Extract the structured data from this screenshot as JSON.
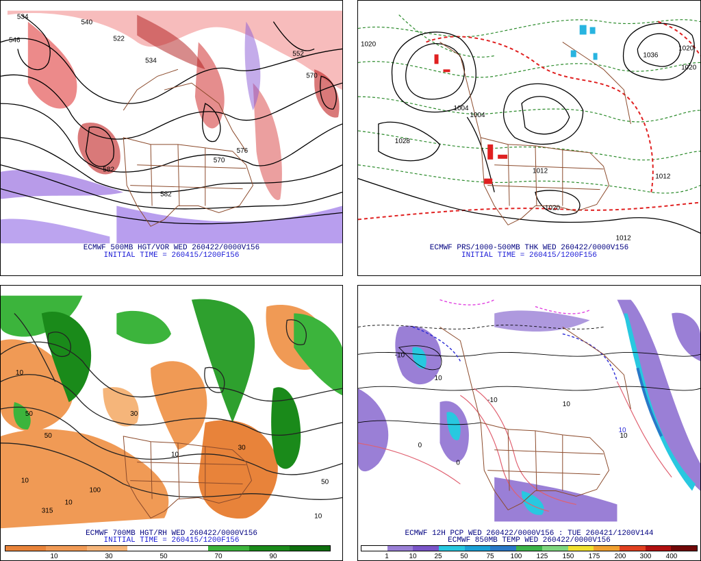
{
  "panels": {
    "top_left": {
      "line1": "ECMWF 500MB HGT/VOR WED 260422/0000V156",
      "line2": "INITIAL TIME = 260415/1200F156",
      "labels": [
        "534",
        "546",
        "540",
        "522",
        "534",
        "552",
        "570",
        "582",
        "576",
        "570",
        "582"
      ]
    },
    "top_right": {
      "line1": "ECMWF PRS/1000-500MB THK WED 260422/0000V156",
      "line2": "INITIAL TIME = 260415/1200F156",
      "labels": [
        "1020",
        "1028",
        "1004",
        "1004",
        "1012",
        "1036",
        "1020",
        "1020",
        "1020",
        "1012",
        "1012"
      ]
    },
    "bottom_left": {
      "line1": "ECMWF 700MB HGT/RH WED 260422/0000V156",
      "line2": "INITIAL TIME = 260415/1200F156",
      "labels": [
        "10",
        "50",
        "50",
        "10",
        "10",
        "30",
        "100",
        "315",
        "30",
        "50",
        "10",
        "10"
      ],
      "colorbar": {
        "colors": [
          "#e8833a",
          "#f09a55",
          "#f5b57a",
          "#ffffff",
          "#ffffff",
          "#3cb43c",
          "#1a8a1a",
          "#0e6e0e"
        ],
        "ticks": [
          "10",
          "30",
          "50",
          "70",
          "90"
        ]
      }
    },
    "bottom_right": {
      "line1": "ECMWF 12H PCP WED 260422/0000V156 : TUE 260421/1200V144",
      "line2": "ECMWF 850MB TEMP WED 260422/0000V156",
      "labels": [
        "-10",
        "0",
        "10",
        "10",
        "10",
        "10",
        "-10",
        "0"
      ],
      "colorbar": {
        "colors": [
          "#ffffff",
          "#9a7fd6",
          "#7a55c8",
          "#28c8e0",
          "#1aa0d6",
          "#2a78c8",
          "#3cb44a",
          "#7ed67e",
          "#f0e030",
          "#f0a030",
          "#e04020",
          "#b01010",
          "#700808"
        ],
        "ticks": [
          "1",
          "10",
          "25",
          "50",
          "75",
          "100",
          "125",
          "150",
          "175",
          "200",
          "300",
          "400"
        ]
      }
    }
  }
}
